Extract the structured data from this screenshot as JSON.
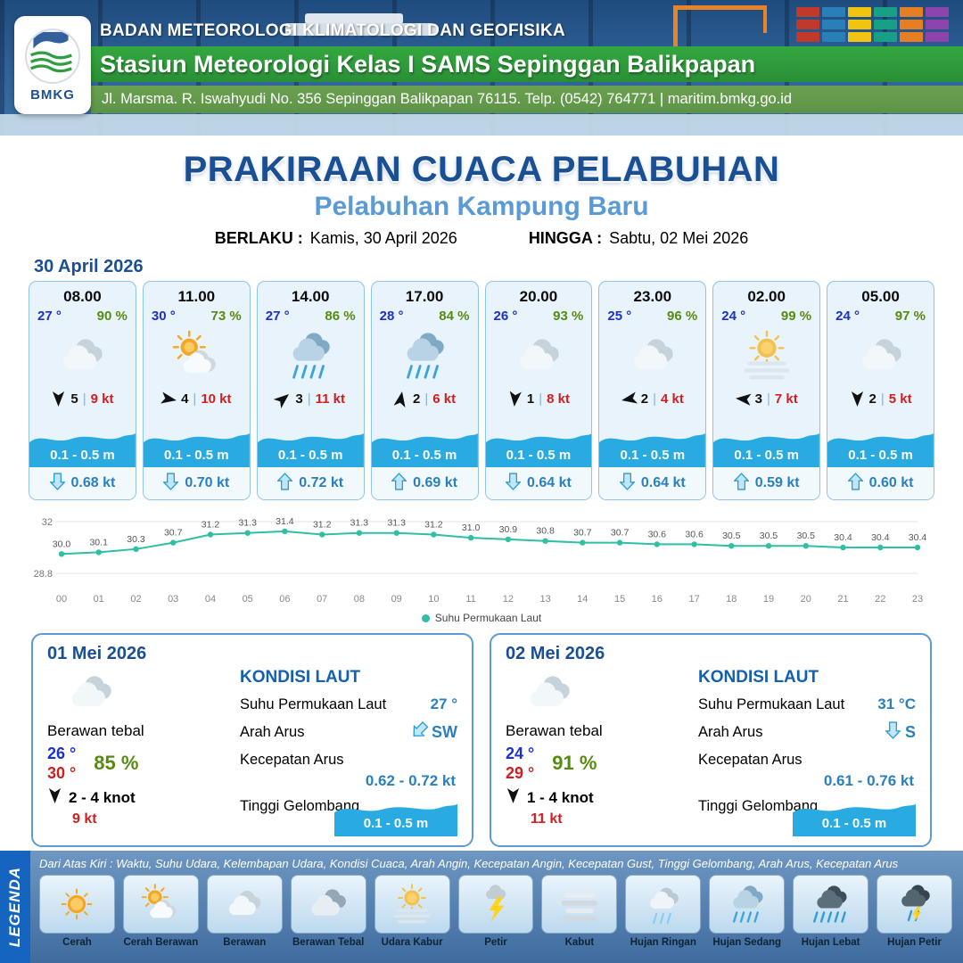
{
  "header": {
    "agency": "BADAN METEOROLOGI KLIMATOLOGI DAN GEOFISIKA",
    "station": "Stasiun Meteorologi Kelas I SAMS Sepinggan Balikpapan",
    "address": "Jl. Marsma. R. Iswahyudi No. 356 Sepinggan Balikpapan 76115. Telp. (0542) 764771 | maritim.bmkg.go.id",
    "logo_label": "BMKG"
  },
  "title": {
    "main": "PRAKIRAAN CUACA PELABUHAN",
    "subtitle": "Pelabuhan Kampung Baru",
    "berlaku_label": "BERLAKU :",
    "berlaku_value": "Kamis, 30 April 2026",
    "hingga_label": "HINGGA :",
    "hingga_value": "Sabtu, 02 Mei 2026"
  },
  "forecast_date": "30 April 2026",
  "forecast_cards": [
    {
      "time": "08.00",
      "temp": "27 °",
      "humidity": "90 %",
      "icon": "berawan",
      "wind_deg": 90,
      "wind_num": "5",
      "wind_speed": "9 kt",
      "wave": "0.1 - 0.5 m",
      "current_deg": 180,
      "current_speed": "0.68 kt"
    },
    {
      "time": "11.00",
      "temp": "30 °",
      "humidity": "73 %",
      "icon": "cerah-berawan",
      "wind_deg": 10,
      "wind_num": "4",
      "wind_speed": "10 kt",
      "wave": "0.1 - 0.5 m",
      "current_deg": 180,
      "current_speed": "0.70 kt"
    },
    {
      "time": "14.00",
      "temp": "27 °",
      "humidity": "86 %",
      "icon": "hujan-sedang",
      "wind_deg": -40,
      "wind_num": "3",
      "wind_speed": "11 kt",
      "wave": "0.1 - 0.5 m",
      "current_deg": 0,
      "current_speed": "0.72 kt"
    },
    {
      "time": "17.00",
      "temp": "28 °",
      "humidity": "84 %",
      "icon": "hujan-sedang",
      "wind_deg": -80,
      "wind_num": "2",
      "wind_speed": "6 kt",
      "wave": "0.1 - 0.5 m",
      "current_deg": 0,
      "current_speed": "0.69 kt"
    },
    {
      "time": "20.00",
      "temp": "26 °",
      "humidity": "93 %",
      "icon": "berawan",
      "wind_deg": 95,
      "wind_num": "1",
      "wind_speed": "8 kt",
      "wave": "0.1 - 0.5 m",
      "current_deg": 180,
      "current_speed": "0.64 kt"
    },
    {
      "time": "23.00",
      "temp": "25 °",
      "humidity": "96 %",
      "icon": "berawan",
      "wind_deg": 170,
      "wind_num": "2",
      "wind_speed": "4 kt",
      "wave": "0.1 - 0.5 m",
      "current_deg": 180,
      "current_speed": "0.64 kt"
    },
    {
      "time": "02.00",
      "temp": "24 °",
      "humidity": "99 %",
      "icon": "udara-kabur",
      "wind_deg": 185,
      "wind_num": "3",
      "wind_speed": "7 kt",
      "wave": "0.1 - 0.5 m",
      "current_deg": 0,
      "current_speed": "0.59 kt"
    },
    {
      "time": "05.00",
      "temp": "24 °",
      "humidity": "97 %",
      "icon": "berawan",
      "wind_deg": 90,
      "wind_num": "2",
      "wind_speed": "5 kt",
      "wave": "0.1 - 0.5 m",
      "current_deg": 0,
      "current_speed": "0.60 kt"
    }
  ],
  "chart_data": {
    "type": "line",
    "series_name": "Suhu Permukaan Laut",
    "x": [
      "00",
      "01",
      "02",
      "03",
      "04",
      "05",
      "06",
      "07",
      "08",
      "09",
      "10",
      "11",
      "12",
      "13",
      "14",
      "15",
      "16",
      "17",
      "18",
      "19",
      "20",
      "21",
      "22",
      "23"
    ],
    "values": [
      30.0,
      30.1,
      30.3,
      30.7,
      31.2,
      31.3,
      31.4,
      31.2,
      31.3,
      31.3,
      31.2,
      31.0,
      30.9,
      30.8,
      30.7,
      30.7,
      30.6,
      30.6,
      30.5,
      30.5,
      30.5,
      30.4,
      30.4,
      30.4
    ],
    "ylim": [
      28.8,
      32
    ],
    "ylabel": "",
    "xlabel": "",
    "grid": "horizontal-minimal",
    "legend_position": "bottom",
    "line_color": "#2fbfa3"
  },
  "daily_cards": [
    {
      "date": "01 Mei 2026",
      "icon": "berawan",
      "condition": "Berawan tebal",
      "temp_min": "26 °",
      "temp_max": "30 °",
      "humidity": "85 %",
      "wind_deg": 90,
      "wind_range": "2  - 4 knot",
      "gust": "9 kt",
      "sea": {
        "title": "KONDISI LAUT",
        "sst_label": "Suhu Permukaan Laut",
        "sst": "27 °",
        "dir_label": "Arah Arus",
        "dir": "SW",
        "dir_deg": 225,
        "speed_label": "Kecepatan Arus",
        "speed": "0.62  - 0.72 kt",
        "wave_label": "Tinggi Gelombang",
        "wave": "0.1 - 0.5 m"
      }
    },
    {
      "date": "02 Mei 2026",
      "icon": "berawan",
      "condition": "Berawan tebal",
      "temp_min": "24 °",
      "temp_max": "29 °",
      "humidity": "91 %",
      "wind_deg": 90,
      "wind_range": "1  - 4 knot",
      "gust": "11 kt",
      "sea": {
        "title": "KONDISI LAUT",
        "sst_label": "Suhu Permukaan Laut",
        "sst": "31 °C",
        "dir_label": "Arah Arus",
        "dir": "S",
        "dir_deg": 180,
        "speed_label": "Kecepatan Arus",
        "speed": "0.61  - 0.76 kt",
        "wave_label": "Tinggi Gelombang",
        "wave": "0.1 - 0.5 m"
      }
    }
  ],
  "legend": {
    "title": "LEGENDA",
    "description": "Dari Atas Kiri : Waktu, Suhu Udara, Kelembapan Udara, Kondisi Cuaca, Arah Angin, Kecepatan Angin, Kecepatan Gust, Tinggi Gelombang, Arah Arus, Kecepatan Arus",
    "items": [
      {
        "label": "Cerah",
        "icon": "cerah"
      },
      {
        "label": "Cerah Berawan",
        "icon": "cerah-berawan"
      },
      {
        "label": "Berawan",
        "icon": "berawan"
      },
      {
        "label": "Berawan Tebal",
        "icon": "berawan-tebal"
      },
      {
        "label": "Udara Kabur",
        "icon": "udara-kabur"
      },
      {
        "label": "Petir",
        "icon": "petir"
      },
      {
        "label": "Kabut",
        "icon": "kabut"
      },
      {
        "label": "Hujan Ringan",
        "icon": "hujan-ringan"
      },
      {
        "label": "Hujan Sedang",
        "icon": "hujan-sedang"
      },
      {
        "label": "Hujan Lebat",
        "icon": "hujan-lebat"
      },
      {
        "label": "Hujan Petir",
        "icon": "hujan-petir"
      }
    ]
  },
  "colors": {
    "accent_blue": "#1b4f93",
    "subtitle_blue": "#5b9bd5",
    "wave_blue": "#29abe2",
    "temp_blue": "#1a30cf",
    "humidity_green": "#568c0e",
    "wind_red": "#d21e1e",
    "header_green": "#2f9e3f",
    "chart_teal": "#2fbfa3",
    "legend_bar_blue": "#1565c0"
  }
}
